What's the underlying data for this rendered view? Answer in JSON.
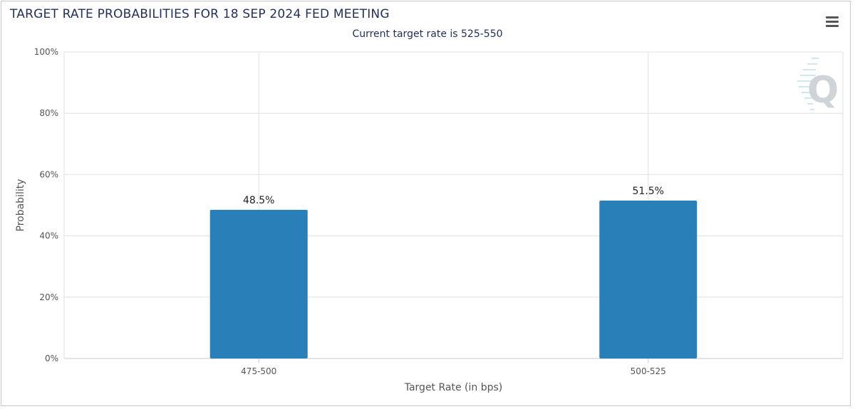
{
  "header": {
    "title": "TARGET RATE PROBABILITIES FOR 18 SEP 2024 FED MEETING",
    "subtitle": "Current target rate is 525-550"
  },
  "toolbar": {
    "menu_icon": "hamburger-menu-icon"
  },
  "watermark": {
    "icon": "q-logo-watermark",
    "letter": "Q"
  },
  "colors": {
    "bar": "#2980b9",
    "title": "#1f2f5a",
    "grid": "#e0e0e0"
  },
  "chart_data": {
    "type": "bar",
    "title": "TARGET RATE PROBABILITIES FOR 18 SEP 2024 FED MEETING",
    "subtitle": "Current target rate is 525-550",
    "xlabel": "Target Rate (in bps)",
    "ylabel": "Probability",
    "categories": [
      "475-500",
      "500-525"
    ],
    "values": [
      48.5,
      51.5
    ],
    "data_labels": [
      "48.5%",
      "51.5%"
    ],
    "ylim": [
      0,
      100
    ],
    "yticks": [
      0,
      20,
      40,
      60,
      80,
      100
    ],
    "ytick_labels": [
      "0%",
      "20%",
      "40%",
      "60%",
      "80%",
      "100%"
    ],
    "grid": true,
    "legend": "none"
  }
}
